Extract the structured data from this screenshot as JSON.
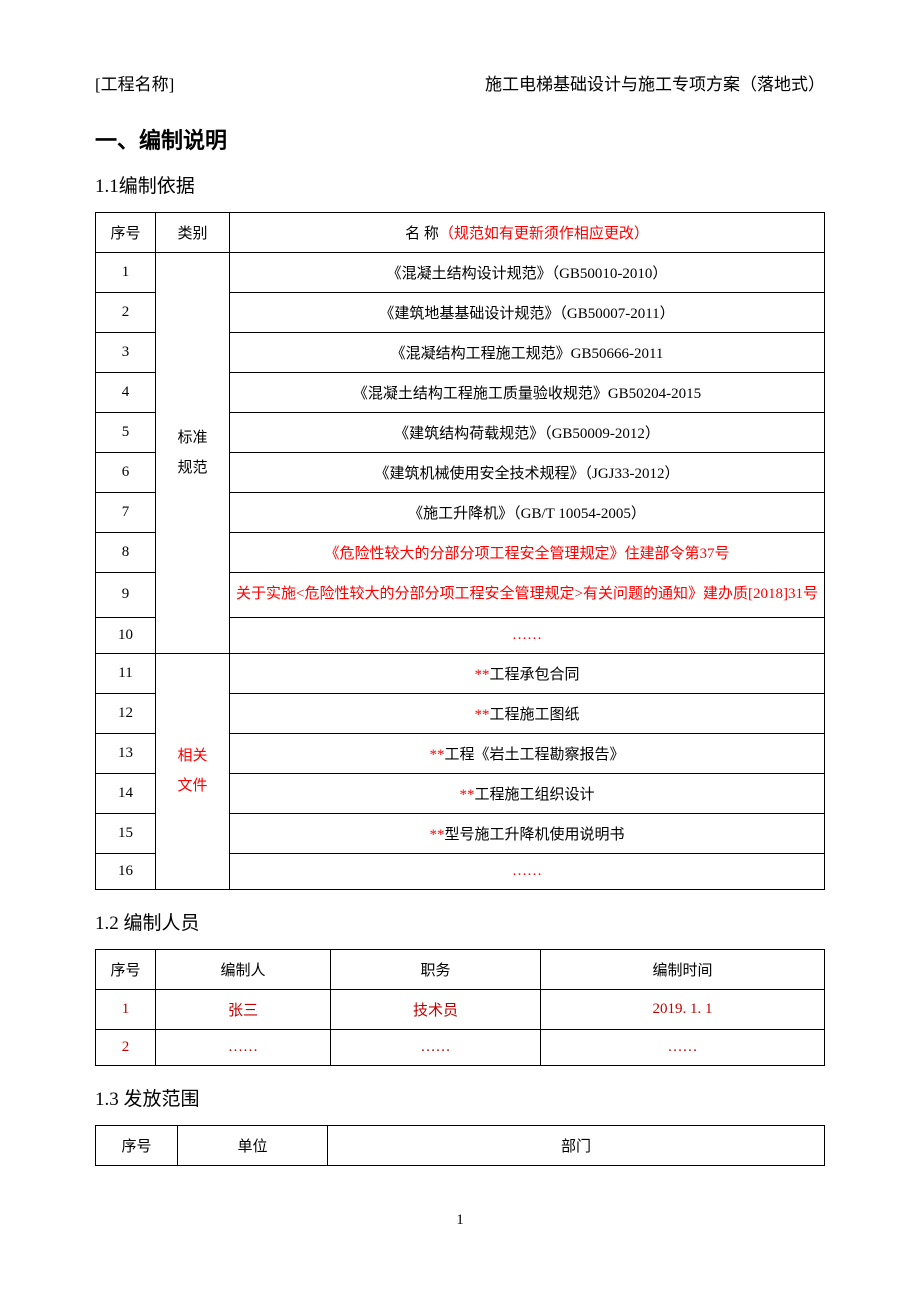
{
  "header": {
    "project_label": "[工程名称]",
    "doc_title": "施工电梯基础设计与施工专项方案（落地式）"
  },
  "section1": {
    "heading": "一、编制说明",
    "sub1": {
      "heading": "1.1编制依据",
      "table": {
        "col_seq": "序号",
        "col_cat": "类别",
        "col_name_prefix": "名 称",
        "col_name_note": "（规范如有更新须作相应更改）",
        "cat1": "标准\n规范",
        "cat2": "相关\n文件",
        "rows": [
          {
            "seq": "1",
            "name": "《混凝土结构设计规范》（GB50010-2010）",
            "red": false
          },
          {
            "seq": "2",
            "name": "《建筑地基基础设计规范》（GB50007-2011）",
            "red": false
          },
          {
            "seq": "3",
            "name": "《混凝结构工程施工规范》GB50666-2011",
            "red": false
          },
          {
            "seq": "4",
            "name": "《混凝土结构工程施工质量验收规范》GB50204-2015",
            "red": false
          },
          {
            "seq": "5",
            "name": "《建筑结构荷载规范》（GB50009-2012）",
            "red": false
          },
          {
            "seq": "6",
            "name": "《建筑机械使用安全技术规程》（JGJ33-2012）",
            "red": false
          },
          {
            "seq": "7",
            "name": "《施工升降机》（GB/T 10054-2005）",
            "red": false
          },
          {
            "seq": "8",
            "name": "《危险性较大的分部分项工程安全管理规定》住建部令第37号",
            "red": true
          },
          {
            "seq": "9",
            "name": "关于实施<危险性较大的分部分项工程安全管理规定>有关问题的通知》建办质[2018]31号",
            "red": true
          },
          {
            "seq": "10",
            "name": "……",
            "red": true
          }
        ],
        "rows2": [
          {
            "seq": "11",
            "prefix": "**",
            "name": "工程承包合同"
          },
          {
            "seq": "12",
            "prefix": "**",
            "name": "工程施工图纸"
          },
          {
            "seq": "13",
            "prefix": "**",
            "name": "工程《岩土工程勘察报告》"
          },
          {
            "seq": "14",
            "prefix": "**",
            "name": "工程施工组织设计"
          },
          {
            "seq": "15",
            "prefix": "**",
            "name": "型号施工升降机使用说明书"
          },
          {
            "seq": "16",
            "prefix": "",
            "name": "……",
            "all_red": true
          }
        ]
      }
    },
    "sub2": {
      "heading": "1.2 编制人员",
      "table": {
        "col_seq": "序号",
        "col_author": "编制人",
        "col_role": "职务",
        "col_time": "编制时间",
        "rows": [
          {
            "seq": "1",
            "author": "张三",
            "role": "技术员",
            "time": "2019. 1. 1"
          },
          {
            "seq": "2",
            "author": "……",
            "role": "……",
            "time": "……"
          }
        ]
      }
    },
    "sub3": {
      "heading": "1.3 发放范围",
      "table": {
        "col_seq": "序号",
        "col_unit": "单位",
        "col_dept": "部门"
      }
    }
  },
  "page_number": "1"
}
